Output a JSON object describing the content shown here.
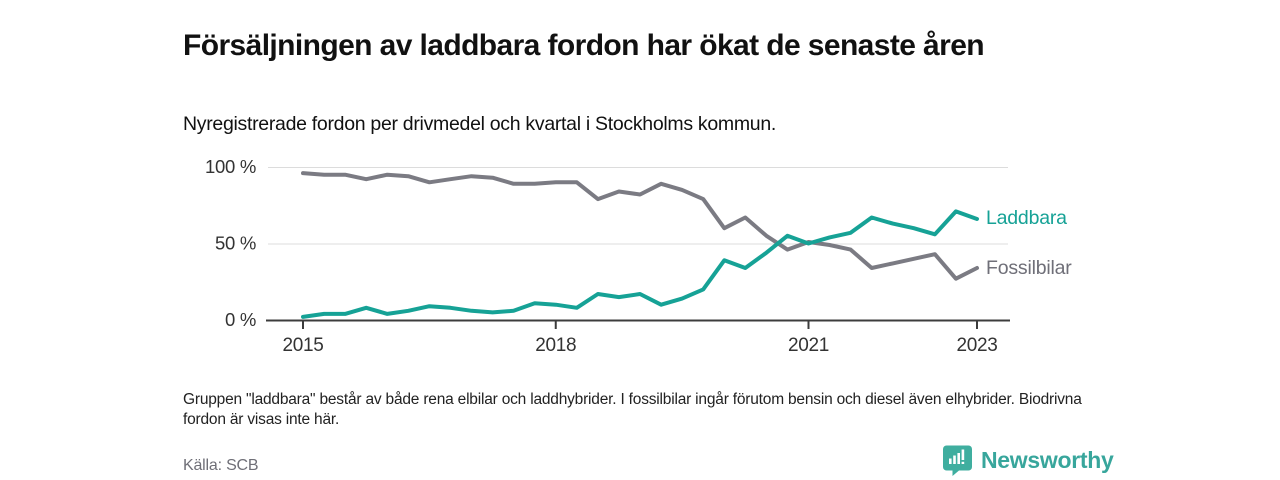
{
  "header": {
    "title": "Försäljningen av laddbara fordon har ökat de senaste åren",
    "subtitle": "Nyregistrerade fordon per drivmedel och kvartal i Stockholms kommun."
  },
  "footnote": "Gruppen \"laddbara\" består av både rena elbilar och laddhybrider. I fossilbilar ingår förutom bensin och diesel även elhybrider. Biodrivna fordon är visas inte här.",
  "footer": {
    "source": "Källa: SCB",
    "brand": "Newsworthy",
    "brand_color": "#38a69c",
    "brand_icon": "newsworthy-speech-bubble-bar-chart"
  },
  "chart_data": {
    "type": "line",
    "title": "Försäljningen av laddbara fordon har ökat de senaste åren",
    "subtitle": "Nyregistrerade fordon per drivmedel och kvartal i Stockholms kommun.",
    "xlabel": "",
    "ylabel": "",
    "ylim": [
      0,
      100
    ],
    "grid": "horizontal",
    "legend_position": "line-end-labels",
    "axis_color": "#3c3c3c",
    "gridline_color": "#dcdcdc",
    "tick_label_color": "#333333",
    "y_ticks": [
      {
        "label": "0 %",
        "value": 0
      },
      {
        "label": "50 %",
        "value": 50
      },
      {
        "label": "100 %",
        "value": 100
      }
    ],
    "x_ticks": [
      {
        "label": "2015",
        "index": 0
      },
      {
        "label": "2018",
        "index": 12
      },
      {
        "label": "2021",
        "index": 24
      },
      {
        "label": "2023",
        "index": 32
      }
    ],
    "categories": [
      "2015-K1",
      "2015-K2",
      "2015-K3",
      "2015-K4",
      "2016-K1",
      "2016-K2",
      "2016-K3",
      "2016-K4",
      "2017-K1",
      "2017-K2",
      "2017-K3",
      "2017-K4",
      "2018-K1",
      "2018-K2",
      "2018-K3",
      "2018-K4",
      "2019-K1",
      "2019-K2",
      "2019-K3",
      "2019-K4",
      "2020-K1",
      "2020-K2",
      "2020-K3",
      "2020-K4",
      "2021-K1",
      "2021-K2",
      "2021-K3",
      "2021-K4",
      "2022-K1",
      "2022-K2",
      "2022-K3",
      "2022-K4",
      "2023-K1"
    ],
    "series": [
      {
        "name": "Laddbara",
        "color": "#16a296",
        "label_color": "#16a296",
        "values": [
          2,
          4,
          4,
          8,
          4,
          6,
          9,
          8,
          6,
          5,
          6,
          11,
          10,
          8,
          17,
          15,
          17,
          10,
          14,
          20,
          39,
          34,
          44,
          55,
          50,
          54,
          57,
          67,
          63,
          60,
          56,
          71,
          66
        ]
      },
      {
        "name": "Fossilbilar",
        "color": "#7b7b83",
        "label_color": "#6f6f78",
        "values": [
          96,
          95,
          95,
          92,
          95,
          94,
          90,
          92,
          94,
          93,
          89,
          89,
          90,
          90,
          79,
          84,
          82,
          89,
          85,
          79,
          60,
          67,
          55,
          46,
          51,
          49,
          46,
          34,
          37,
          40,
          43,
          27,
          34
        ]
      }
    ]
  }
}
